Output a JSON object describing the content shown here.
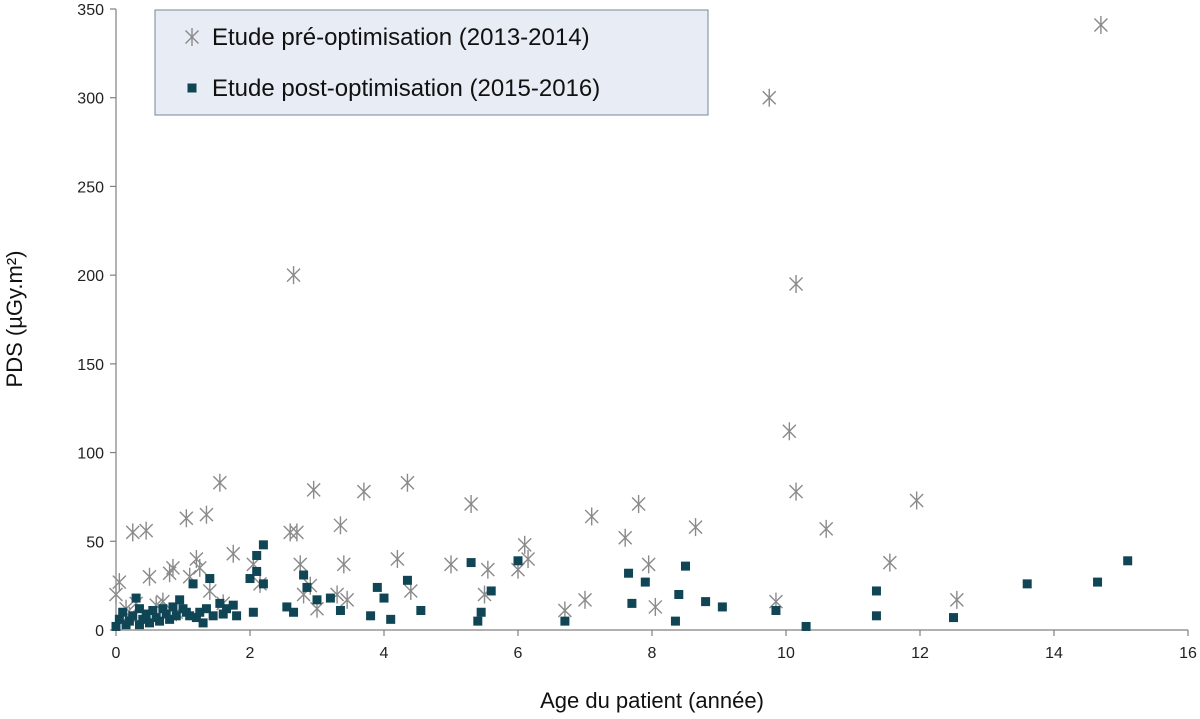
{
  "chart_data": {
    "type": "scatter",
    "xlabel": "Age du patient (année)",
    "ylabel": "PDS (µGy.m²)",
    "xlim": [
      0,
      16
    ],
    "ylim": [
      0,
      350
    ],
    "x_ticks": [
      0,
      2,
      4,
      6,
      8,
      10,
      12,
      14,
      16
    ],
    "y_ticks": [
      0,
      50,
      100,
      150,
      200,
      250,
      300,
      350
    ],
    "grid": false,
    "legend_position": "top-left",
    "series": [
      {
        "name": "Etude pré-optimisation (2013-2014)",
        "marker": "asterisk",
        "color": "#8a8a8a",
        "points": [
          [
            0.0,
            20
          ],
          [
            0.05,
            27
          ],
          [
            0.1,
            5
          ],
          [
            0.15,
            12
          ],
          [
            0.2,
            8
          ],
          [
            0.25,
            55
          ],
          [
            0.3,
            15
          ],
          [
            0.45,
            56
          ],
          [
            0.5,
            30
          ],
          [
            0.6,
            14
          ],
          [
            0.7,
            16
          ],
          [
            0.8,
            32
          ],
          [
            0.85,
            35
          ],
          [
            0.9,
            10
          ],
          [
            1.05,
            63
          ],
          [
            1.1,
            30
          ],
          [
            1.2,
            40
          ],
          [
            1.25,
            35
          ],
          [
            1.35,
            65
          ],
          [
            1.4,
            22
          ],
          [
            1.55,
            83
          ],
          [
            1.6,
            15
          ],
          [
            1.75,
            43
          ],
          [
            2.05,
            37
          ],
          [
            2.15,
            26
          ],
          [
            2.6,
            55
          ],
          [
            2.65,
            200
          ],
          [
            2.7,
            55
          ],
          [
            2.75,
            37
          ],
          [
            2.8,
            20
          ],
          [
            2.9,
            25
          ],
          [
            2.95,
            79
          ],
          [
            3.0,
            12
          ],
          [
            3.3,
            20
          ],
          [
            3.35,
            59
          ],
          [
            3.4,
            37
          ],
          [
            3.45,
            17
          ],
          [
            3.7,
            78
          ],
          [
            4.2,
            40
          ],
          [
            4.35,
            83
          ],
          [
            4.4,
            22
          ],
          [
            5.0,
            37
          ],
          [
            5.3,
            71
          ],
          [
            5.5,
            20
          ],
          [
            5.55,
            34
          ],
          [
            6.0,
            34
          ],
          [
            6.1,
            48
          ],
          [
            6.15,
            40
          ],
          [
            6.7,
            11
          ],
          [
            7.0,
            17
          ],
          [
            7.1,
            64
          ],
          [
            7.6,
            52
          ],
          [
            7.8,
            71
          ],
          [
            7.95,
            37
          ],
          [
            8.05,
            13
          ],
          [
            8.65,
            58
          ],
          [
            9.75,
            300
          ],
          [
            9.85,
            16
          ],
          [
            10.05,
            112
          ],
          [
            10.15,
            78
          ],
          [
            10.15,
            195
          ],
          [
            10.6,
            57
          ],
          [
            11.55,
            38
          ],
          [
            11.95,
            73
          ],
          [
            12.55,
            17
          ],
          [
            14.7,
            341
          ]
        ]
      },
      {
        "name": "Etude post-optimisation (2015-2016)",
        "marker": "square",
        "color": "#0f4554",
        "points": [
          [
            0.0,
            2
          ],
          [
            0.05,
            6
          ],
          [
            0.1,
            10
          ],
          [
            0.15,
            3
          ],
          [
            0.2,
            5
          ],
          [
            0.25,
            8
          ],
          [
            0.3,
            18
          ],
          [
            0.35,
            3
          ],
          [
            0.35,
            12
          ],
          [
            0.4,
            6
          ],
          [
            0.45,
            9
          ],
          [
            0.5,
            4
          ],
          [
            0.55,
            11
          ],
          [
            0.6,
            7
          ],
          [
            0.65,
            5
          ],
          [
            0.7,
            12
          ],
          [
            0.75,
            9
          ],
          [
            0.8,
            6
          ],
          [
            0.85,
            13
          ],
          [
            0.9,
            8
          ],
          [
            0.95,
            17
          ],
          [
            1.0,
            12
          ],
          [
            1.05,
            10
          ],
          [
            1.1,
            8
          ],
          [
            1.15,
            26
          ],
          [
            1.2,
            7
          ],
          [
            1.25,
            10
          ],
          [
            1.3,
            4
          ],
          [
            1.35,
            12
          ],
          [
            1.4,
            29
          ],
          [
            1.45,
            8
          ],
          [
            1.55,
            15
          ],
          [
            1.6,
            9
          ],
          [
            1.65,
            12
          ],
          [
            1.75,
            14
          ],
          [
            1.8,
            8
          ],
          [
            2.0,
            29
          ],
          [
            2.05,
            10
          ],
          [
            2.1,
            42
          ],
          [
            2.1,
            33
          ],
          [
            2.2,
            48
          ],
          [
            2.2,
            26
          ],
          [
            2.55,
            13
          ],
          [
            2.65,
            10
          ],
          [
            2.8,
            31
          ],
          [
            2.85,
            24
          ],
          [
            3.0,
            17
          ],
          [
            3.2,
            18
          ],
          [
            3.35,
            11
          ],
          [
            3.8,
            8
          ],
          [
            3.9,
            24
          ],
          [
            4.0,
            18
          ],
          [
            4.1,
            6
          ],
          [
            4.35,
            28
          ],
          [
            4.55,
            11
          ],
          [
            5.3,
            38
          ],
          [
            5.4,
            5
          ],
          [
            5.45,
            10
          ],
          [
            5.6,
            22
          ],
          [
            6.0,
            39
          ],
          [
            6.7,
            5
          ],
          [
            7.65,
            32
          ],
          [
            7.7,
            15
          ],
          [
            7.9,
            27
          ],
          [
            8.35,
            5
          ],
          [
            8.4,
            20
          ],
          [
            8.5,
            36
          ],
          [
            8.8,
            16
          ],
          [
            9.05,
            13
          ],
          [
            9.85,
            11
          ],
          [
            10.3,
            2
          ],
          [
            11.35,
            22
          ],
          [
            11.35,
            8
          ],
          [
            12.5,
            7
          ],
          [
            13.6,
            26
          ],
          [
            14.65,
            27
          ],
          [
            15.1,
            39
          ]
        ]
      }
    ]
  }
}
